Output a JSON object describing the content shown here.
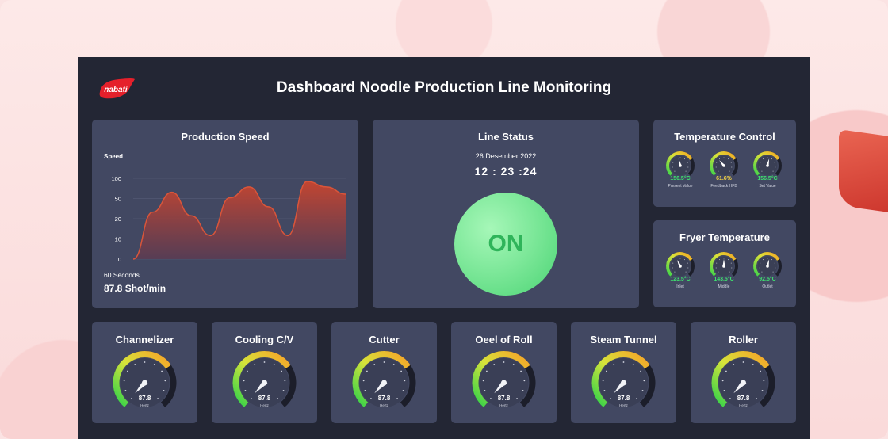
{
  "header": {
    "title": "Dashboard Noodle Production Line Monitoring",
    "logo_text": "nabati"
  },
  "speed": {
    "title": "Production Speed",
    "y_label": "Speed",
    "duration": "60 Seconds",
    "value": "87.8 Shot/min"
  },
  "chart_data": {
    "type": "area",
    "title": "Production Speed",
    "ylabel": "Speed",
    "xlabel": "60 Seconds",
    "y_ticks": [
      "100",
      "50",
      "20",
      "10",
      "0"
    ],
    "x": [
      0,
      1,
      2,
      3,
      4,
      5,
      6,
      7,
      8,
      9,
      10,
      11
    ],
    "values": [
      0,
      2.6,
      3.7,
      2.4,
      1.3,
      3.4,
      4.0,
      2.9,
      1.3,
      4.3,
      4.0,
      3.6
    ],
    "grid": true,
    "colors": {
      "line": "#d9553a",
      "fill_top": "#c9452f",
      "fill_bottom": "#5a3b52"
    }
  },
  "status": {
    "title": "Line Status",
    "date": "26 Desember 2022",
    "time": "12 : 23 :24",
    "state": "ON"
  },
  "temperature": {
    "title": "Temperature Control",
    "gauges": [
      {
        "value": "156.5°C",
        "label": "Present Value",
        "level": 0.45,
        "color": "#3ee26e"
      },
      {
        "value": "61.6%",
        "label": "Feedback HFB",
        "level": 0.35,
        "color": "#f5d442"
      },
      {
        "value": "156.5°C",
        "label": "Set Value",
        "level": 0.55,
        "color": "#3ee26e"
      }
    ]
  },
  "fryer": {
    "title": "Fryer Temperature",
    "gauges": [
      {
        "value": "123.5°C",
        "label": "Inlet",
        "level": 0.4,
        "color": "#3ee26e"
      },
      {
        "value": "143.5°C",
        "label": "Middle",
        "level": 0.5,
        "color": "#3ee26e"
      },
      {
        "value": "92.5°C",
        "label": "Outlet",
        "level": 0.55,
        "color": "#3ee26e"
      }
    ]
  },
  "machines": [
    {
      "name": "Channelizer",
      "value": "87.8",
      "unit": "Hertz",
      "level": 0.62
    },
    {
      "name": "Cooling C/V",
      "value": "87.8",
      "unit": "Hertz",
      "level": 0.62
    },
    {
      "name": "Cutter",
      "value": "87.8",
      "unit": "Hertz",
      "level": 0.62
    },
    {
      "name": "Oeel of Roll",
      "value": "87.8",
      "unit": "Hertz",
      "level": 0.62
    },
    {
      "name": "Steam Tunnel",
      "value": "87.8",
      "unit": "Hertz",
      "level": 0.62
    },
    {
      "name": "Roller",
      "value": "87.8",
      "unit": "Hertz",
      "level": 0.62
    }
  ]
}
